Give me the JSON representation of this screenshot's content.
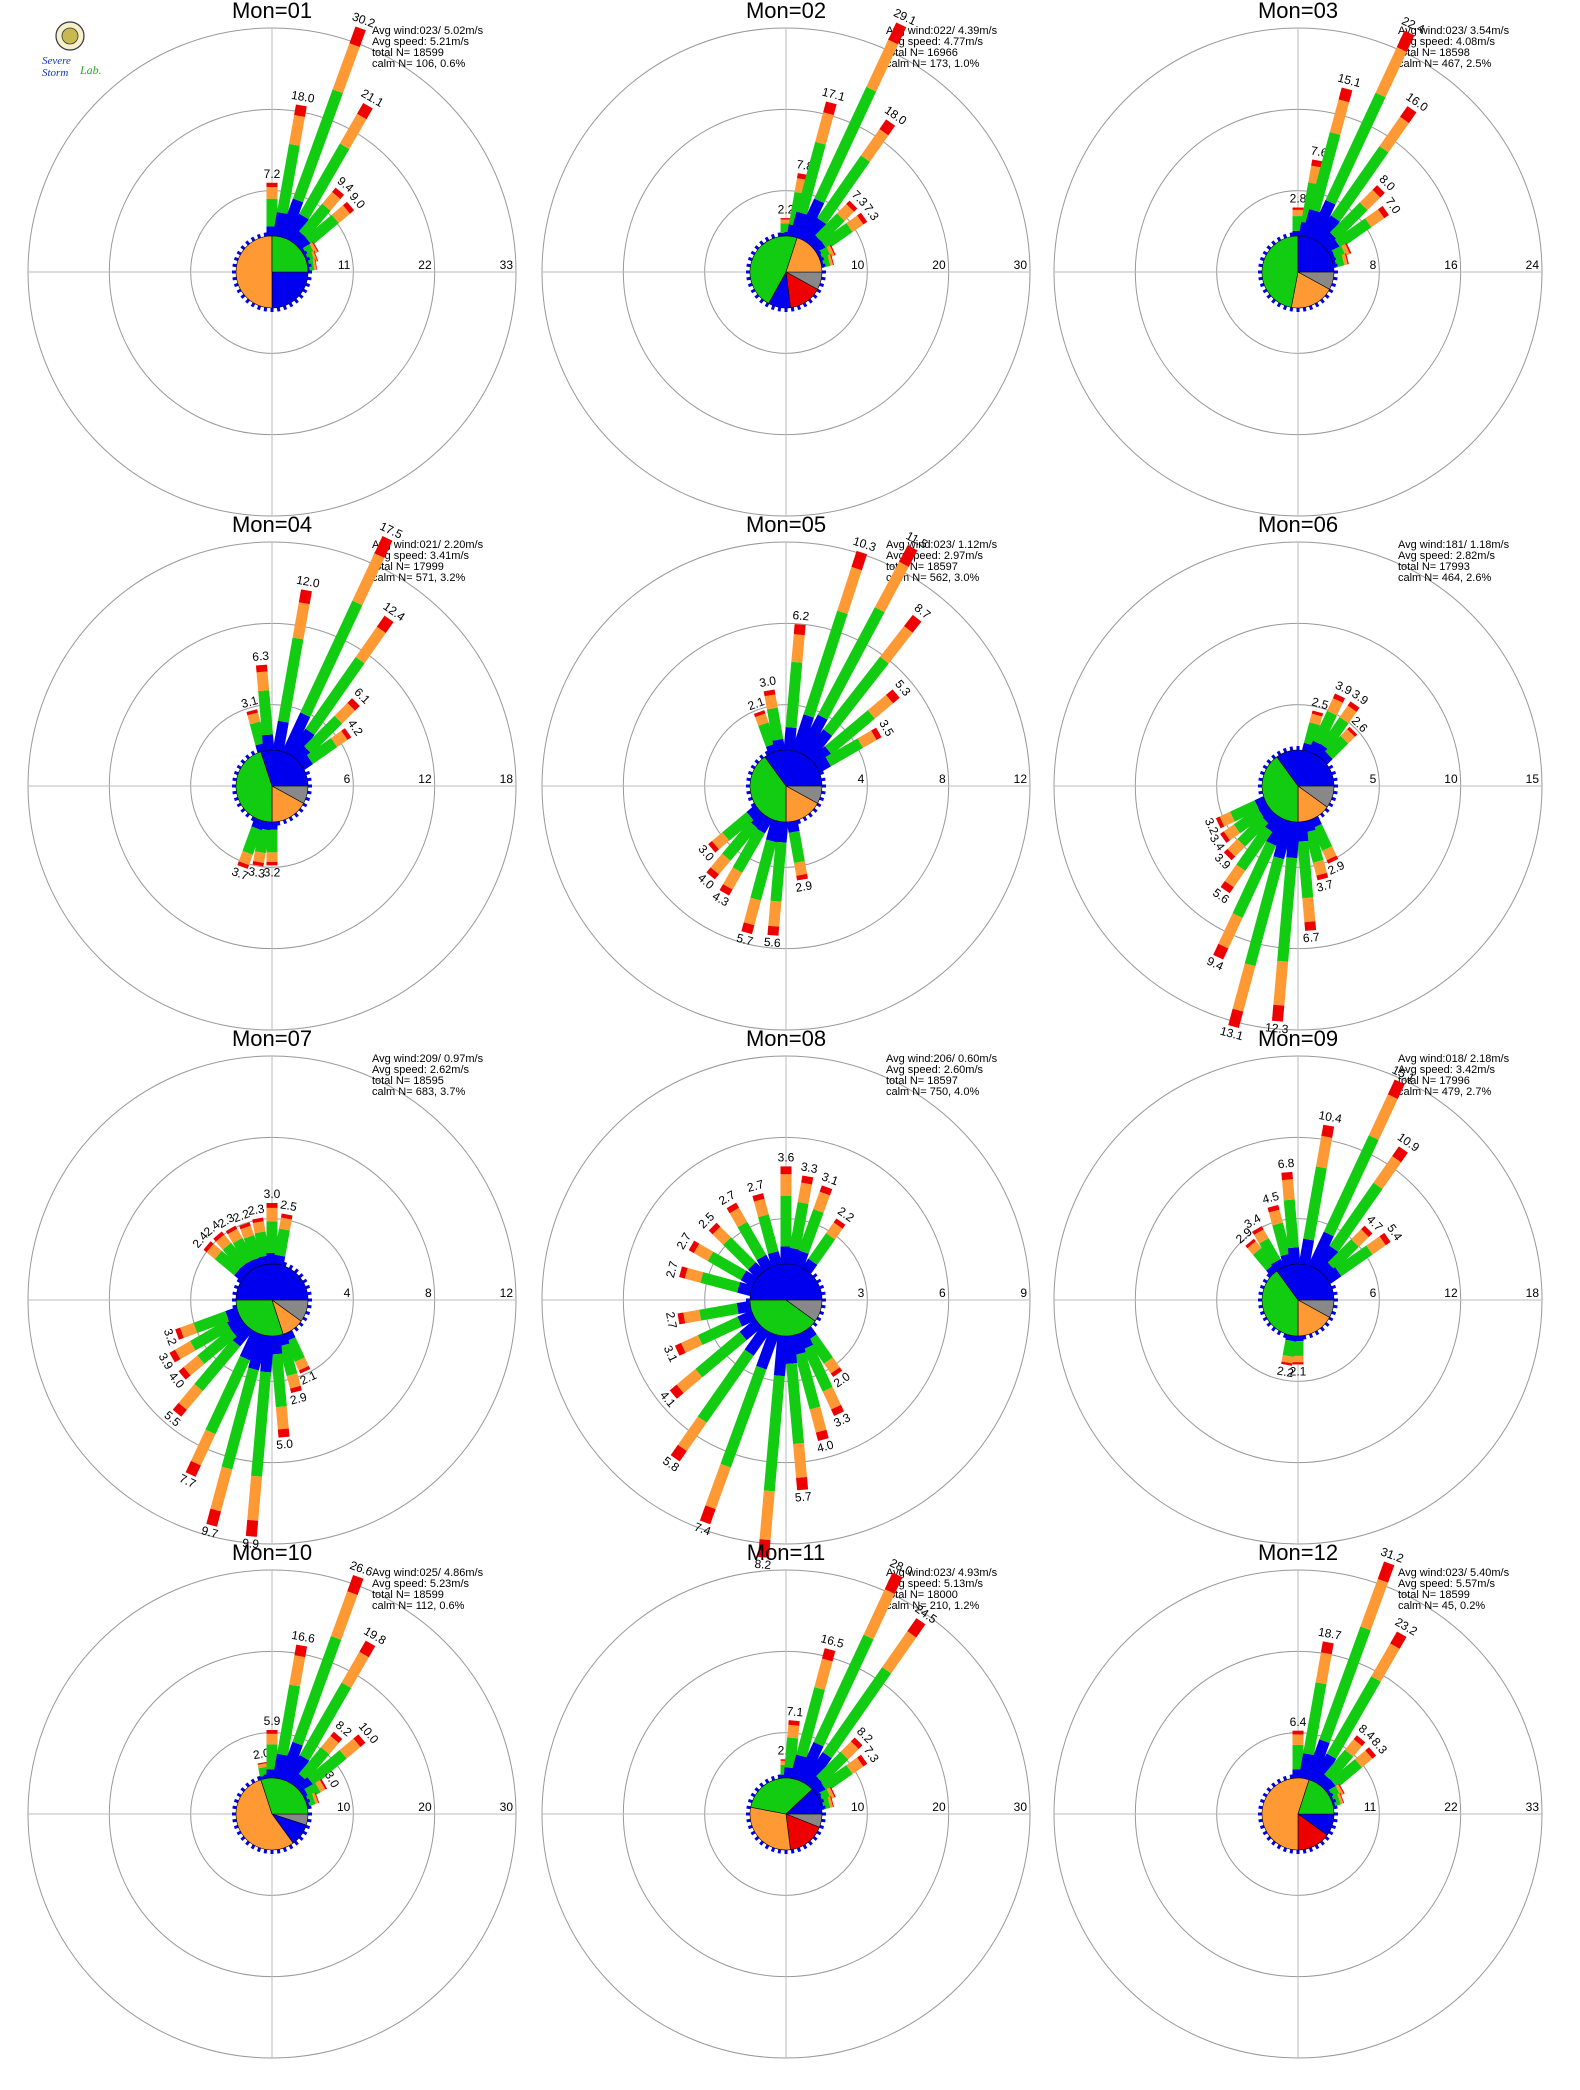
{
  "logo": {
    "line1": "Severe",
    "line2": "Storm",
    "line3": "Lab."
  },
  "colors": {
    "ring": "#999999",
    "axis": "#bbbbbb",
    "gray": "#888888",
    "blue": "#0000ee",
    "green": "#11cc11",
    "orange": "#ff9933",
    "red": "#ee0000",
    "label": "#000000"
  },
  "chart_data": [
    {
      "type": "windrose",
      "title": "Mon=01",
      "ticks": [
        "11",
        "22",
        "33"
      ],
      "rmax": 33,
      "stats": [
        "Avg wind:023/ 5.02m/s",
        "Avg speed: 5.21m/s",
        "total N=      18599",
        "calm N=    106,   0.6%"
      ],
      "pie": [
        [
          "blue",
          25
        ],
        [
          "orange",
          50
        ],
        [
          "green",
          25
        ]
      ],
      "petals": [
        [
          0,
          7.2,
          "7.2"
        ],
        [
          10,
          18.0,
          "18.0"
        ],
        [
          20,
          30.2,
          "30.2"
        ],
        [
          30,
          21.1,
          "21.1"
        ],
        [
          40,
          9.4,
          "9.4"
        ],
        [
          50,
          9.0,
          "9.0"
        ],
        [
          60,
          2.0,
          ""
        ],
        [
          70,
          1.5,
          ""
        ],
        [
          80,
          1.2,
          ""
        ]
      ]
    },
    {
      "type": "windrose",
      "title": "Mon=02",
      "ticks": [
        "10",
        "20",
        "30"
      ],
      "rmax": 30,
      "stats": [
        "Avg wind:022/ 4.39m/s",
        "Avg speed: 4.77m/s",
        "total N=      16966",
        "calm N=    173,   1.0%"
      ],
      "pie": [
        [
          "gray",
          8
        ],
        [
          "red",
          15
        ],
        [
          "blue",
          10
        ],
        [
          "green",
          47
        ],
        [
          "orange",
          20
        ]
      ],
      "petals": [
        [
          0,
          2.2,
          "2.2"
        ],
        [
          10,
          7.8,
          "7.8"
        ],
        [
          15,
          17.1,
          "17.1"
        ],
        [
          25,
          29.1,
          "29.1"
        ],
        [
          35,
          18.0,
          "18.0"
        ],
        [
          45,
          7.3,
          "7.3"
        ],
        [
          55,
          7.3,
          "7.3"
        ],
        [
          65,
          2.0,
          ""
        ],
        [
          75,
          1.5,
          ""
        ]
      ]
    },
    {
      "type": "windrose",
      "title": "Mon=03",
      "ticks": [
        "8",
        "16",
        "24"
      ],
      "rmax": 24,
      "stats": [
        "Avg wind:023/ 3.54m/s",
        "Avg speed: 4.08m/s",
        "total N=      18598",
        "calm N=    467,   2.5%"
      ],
      "pie": [
        [
          "gray",
          8
        ],
        [
          "orange",
          20
        ],
        [
          "green",
          47
        ],
        [
          "blue",
          25
        ]
      ],
      "petals": [
        [
          0,
          2.8,
          "2.8"
        ],
        [
          10,
          7.6,
          "7.6"
        ],
        [
          15,
          15.1,
          "15.1"
        ],
        [
          25,
          22.4,
          "22.4"
        ],
        [
          35,
          16.0,
          "16.0"
        ],
        [
          45,
          8.0,
          "8.0"
        ],
        [
          55,
          7.0,
          "7.0"
        ],
        [
          65,
          2.0,
          ""
        ],
        [
          75,
          1.5,
          ""
        ]
      ]
    },
    {
      "type": "windrose",
      "title": "Mon=04",
      "ticks": [
        "6",
        "12",
        "18"
      ],
      "rmax": 18,
      "stats": [
        "Avg wind:021/ 2.20m/s",
        "Avg speed: 3.41m/s",
        "total N=      17999",
        "calm N=    571,   3.2%"
      ],
      "pie": [
        [
          "gray",
          8
        ],
        [
          "orange",
          17
        ],
        [
          "green",
          45
        ],
        [
          "blue",
          30
        ]
      ],
      "petals": [
        [
          345,
          3.1,
          "3.1"
        ],
        [
          355,
          6.3,
          "6.3"
        ],
        [
          10,
          12.0,
          "12.0"
        ],
        [
          25,
          17.5,
          "17.5"
        ],
        [
          35,
          12.4,
          "12.4"
        ],
        [
          45,
          6.1,
          "6.1"
        ],
        [
          55,
          4.2,
          "4.2"
        ],
        [
          180,
          3.2,
          "3.2"
        ],
        [
          190,
          3.3,
          "3.3"
        ],
        [
          200,
          3.7,
          "3.7"
        ]
      ]
    },
    {
      "type": "windrose",
      "title": "Mon=05",
      "ticks": [
        "4",
        "8",
        "12"
      ],
      "rmax": 12,
      "stats": [
        "Avg wind:023/ 1.12m/s",
        "Avg speed: 2.97m/s",
        "total N=      18597",
        "calm N=    562,   3.0%"
      ],
      "pie": [
        [
          "gray",
          8
        ],
        [
          "orange",
          17
        ],
        [
          "green",
          40
        ],
        [
          "blue",
          35
        ]
      ],
      "petals": [
        [
          340,
          2.1,
          "2.1"
        ],
        [
          350,
          3.0,
          "3.0"
        ],
        [
          5,
          6.2,
          "6.2"
        ],
        [
          18,
          10.3,
          "10.3"
        ],
        [
          28,
          11.5,
          "11.5"
        ],
        [
          38,
          8.7,
          "8.7"
        ],
        [
          50,
          5.3,
          "5.3"
        ],
        [
          60,
          3.5,
          "3.5"
        ],
        [
          170,
          2.9,
          "2.9"
        ],
        [
          185,
          5.6,
          "5.6"
        ],
        [
          195,
          5.7,
          "5.7"
        ],
        [
          210,
          4.3,
          "4.3"
        ],
        [
          220,
          4.0,
          "4.0"
        ],
        [
          230,
          3.0,
          "3.0"
        ]
      ]
    },
    {
      "type": "windrose",
      "title": "Mon=06",
      "ticks": [
        "5",
        "10",
        "15"
      ],
      "rmax": 15,
      "stats": [
        "Avg wind:181/ 1.18m/s",
        "Avg speed: 2.82m/s",
        "total N=      17993",
        "calm N=    464,   2.6%"
      ],
      "pie": [
        [
          "gray",
          10
        ],
        [
          "orange",
          15
        ],
        [
          "green",
          40
        ],
        [
          "blue",
          35
        ]
      ],
      "petals": [
        [
          15,
          2.5,
          "2.5"
        ],
        [
          25,
          3.9,
          "3.9"
        ],
        [
          35,
          3.9,
          "3.9"
        ],
        [
          45,
          2.6,
          "2.6"
        ],
        [
          155,
          2.9,
          "2.9"
        ],
        [
          165,
          3.7,
          "3.7"
        ],
        [
          175,
          6.7,
          "6.7"
        ],
        [
          185,
          12.3,
          "12.3"
        ],
        [
          195,
          13.1,
          "13.1"
        ],
        [
          205,
          9.4,
          "9.4"
        ],
        [
          215,
          5.6,
          "5.6"
        ],
        [
          225,
          3.9,
          "3.9"
        ],
        [
          235,
          3.4,
          "3.4"
        ],
        [
          245,
          3.2,
          "3.2"
        ]
      ]
    },
    {
      "type": "windrose",
      "title": "Mon=07",
      "ticks": [
        "4",
        "8",
        "12"
      ],
      "rmax": 12,
      "stats": [
        "Avg wind:209/ 0.97m/s",
        "Avg speed: 2.62m/s",
        "total N=      18595",
        "calm N=    683,   3.7%"
      ],
      "pie": [
        [
          "gray",
          10
        ],
        [
          "orange",
          10
        ],
        [
          "green",
          30
        ],
        [
          "blue",
          50
        ]
      ],
      "petals": [
        [
          310,
          2.4,
          "2.4"
        ],
        [
          320,
          2.4,
          "2.4"
        ],
        [
          330,
          2.3,
          "2.3"
        ],
        [
          340,
          2.2,
          "2.2"
        ],
        [
          350,
          2.3,
          "2.3"
        ],
        [
          0,
          3.0,
          "3.0"
        ],
        [
          10,
          2.5,
          "2.5"
        ],
        [
          155,
          2.1,
          "2.1"
        ],
        [
          165,
          2.9,
          "2.9"
        ],
        [
          175,
          5.0,
          "5.0"
        ],
        [
          185,
          9.9,
          "9.9"
        ],
        [
          195,
          9.7,
          "9.7"
        ],
        [
          205,
          7.7,
          "7.7"
        ],
        [
          220,
          5.5,
          "5.5"
        ],
        [
          230,
          4.0,
          "4.0"
        ],
        [
          240,
          3.9,
          "3.9"
        ],
        [
          250,
          3.2,
          "3.2"
        ]
      ]
    },
    {
      "type": "windrose",
      "title": "Mon=08",
      "ticks": [
        "3",
        "6",
        "9"
      ],
      "rmax": 9,
      "stats": [
        "Avg wind:206/ 0.60m/s",
        "Avg speed: 2.60m/s",
        "total N=      18597",
        "calm N=    750,   4.0%"
      ],
      "pie": [
        [
          "gray",
          10
        ],
        [
          "green",
          40
        ],
        [
          "blue",
          50
        ]
      ],
      "petals": [
        [
          285,
          2.7,
          "2.7"
        ],
        [
          300,
          2.7,
          "2.7"
        ],
        [
          315,
          2.5,
          "2.5"
        ],
        [
          330,
          2.7,
          "2.7"
        ],
        [
          345,
          2.7,
          "2.7"
        ],
        [
          0,
          3.6,
          "3.6"
        ],
        [
          10,
          3.3,
          "3.3"
        ],
        [
          20,
          3.1,
          "3.1"
        ],
        [
          35,
          2.2,
          "2.2"
        ],
        [
          145,
          2.0,
          "2.0"
        ],
        [
          155,
          3.3,
          "3.3"
        ],
        [
          165,
          4.0,
          "4.0"
        ],
        [
          175,
          5.7,
          "5.7"
        ],
        [
          185,
          8.2,
          "8.2"
        ],
        [
          200,
          7.4,
          "7.4"
        ],
        [
          215,
          5.8,
          "5.8"
        ],
        [
          230,
          4.1,
          "4.1"
        ],
        [
          245,
          3.1,
          "3.1"
        ],
        [
          260,
          2.7,
          "2.7"
        ]
      ]
    },
    {
      "type": "windrose",
      "title": "Mon=09",
      "ticks": [
        "6",
        "12",
        "18"
      ],
      "rmax": 18,
      "stats": [
        "Avg wind:018/ 2.18m/s",
        "Avg speed: 3.42m/s",
        "total N=      17996",
        "calm N=    479,   2.7%"
      ],
      "pie": [
        [
          "gray",
          8
        ],
        [
          "orange",
          17
        ],
        [
          "green",
          40
        ],
        [
          "blue",
          35
        ]
      ],
      "petals": [
        [
          320,
          2.9,
          "2.9"
        ],
        [
          330,
          3.4,
          "3.4"
        ],
        [
          345,
          4.5,
          "4.5"
        ],
        [
          355,
          6.8,
          "6.8"
        ],
        [
          10,
          10.4,
          "10.4"
        ],
        [
          25,
          15.1,
          "15.1"
        ],
        [
          35,
          10.9,
          "10.9"
        ],
        [
          45,
          4.7,
          "4.7"
        ],
        [
          55,
          5.4,
          "5.4"
        ],
        [
          180,
          2.1,
          "2.1"
        ],
        [
          190,
          2.2,
          "2.2"
        ]
      ]
    },
    {
      "type": "windrose",
      "title": "Mon=10",
      "ticks": [
        "10",
        "20",
        "30"
      ],
      "rmax": 30,
      "stats": [
        "Avg wind:025/ 4.86m/s",
        "Avg speed: 5.23m/s",
        "total N=      18599",
        "calm N=    112,   0.6%"
      ],
      "pie": [
        [
          "gray",
          5
        ],
        [
          "blue",
          10
        ],
        [
          "orange",
          55
        ],
        [
          "green",
          30
        ]
      ],
      "petals": [
        [
          350,
          2.0,
          "2.0"
        ],
        [
          0,
          5.9,
          "5.9"
        ],
        [
          10,
          16.6,
          "16.6"
        ],
        [
          20,
          26.6,
          "26.6"
        ],
        [
          30,
          19.8,
          "19.8"
        ],
        [
          40,
          8.2,
          "8.2"
        ],
        [
          50,
          10.0,
          "10.0"
        ],
        [
          60,
          3.0,
          "3.0"
        ],
        [
          70,
          1.5,
          ""
        ]
      ]
    },
    {
      "type": "windrose",
      "title": "Mon=11",
      "ticks": [
        "10",
        "20",
        "30"
      ],
      "rmax": 30,
      "stats": [
        "Avg wind:023/ 4.93m/s",
        "Avg speed: 5.13m/s",
        "total N=      18000",
        "calm N=    210,   1.2%"
      ],
      "pie": [
        [
          "gray",
          6
        ],
        [
          "red",
          17
        ],
        [
          "orange",
          30
        ],
        [
          "green",
          35
        ],
        [
          "blue",
          12
        ]
      ],
      "petals": [
        [
          0,
          2.3,
          "2.3"
        ],
        [
          5,
          7.1,
          "7.1"
        ],
        [
          15,
          16.5,
          "16.5"
        ],
        [
          25,
          28.0,
          "28.0"
        ],
        [
          35,
          24.5,
          "24.5"
        ],
        [
          45,
          8.2,
          "8.2"
        ],
        [
          55,
          7.3,
          "7.3"
        ],
        [
          65,
          2.0,
          ""
        ],
        [
          75,
          1.5,
          ""
        ]
      ]
    },
    {
      "type": "windrose",
      "title": "Mon=12",
      "ticks": [
        "11",
        "22",
        "33"
      ],
      "rmax": 33,
      "stats": [
        "Avg wind:023/ 5.40m/s",
        "Avg speed: 5.57m/s",
        "total N=      18599",
        "calm N=    45,   0.2%"
      ],
      "pie": [
        [
          "blue",
          10
        ],
        [
          "red",
          15
        ],
        [
          "orange",
          55
        ],
        [
          "green",
          20
        ]
      ],
      "petals": [
        [
          0,
          6.4,
          "6.4"
        ],
        [
          10,
          18.7,
          "18.7"
        ],
        [
          20,
          31.2,
          "31.2"
        ],
        [
          30,
          23.2,
          "23.2"
        ],
        [
          40,
          8.4,
          "8.4"
        ],
        [
          50,
          8.3,
          "8.3"
        ],
        [
          60,
          2.0,
          ""
        ],
        [
          70,
          1.5,
          ""
        ]
      ]
    }
  ]
}
